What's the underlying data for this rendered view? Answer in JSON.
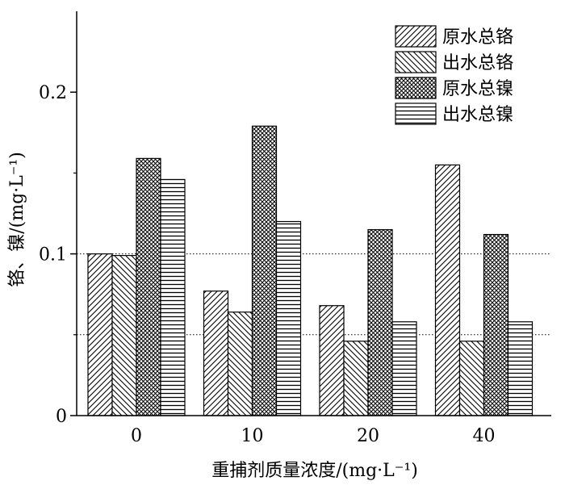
{
  "chart_data": {
    "type": "bar",
    "title": "",
    "xlabel": "重捕剂质量浓度/(mg·L⁻¹)",
    "ylabel": "铬、镍/(mg·L⁻¹)",
    "categories": [
      "0",
      "10",
      "20",
      "40"
    ],
    "ylim": [
      0,
      0.25
    ],
    "yticks": [
      "0",
      "0.1",
      "0.2"
    ],
    "ytick_values": [
      0,
      0.1,
      0.2
    ],
    "reference_lines": [
      0.1,
      0.05
    ],
    "legend_position": "top-right",
    "series": [
      {
        "name": "原水总铬",
        "values": [
          0.1,
          0.077,
          0.068,
          0.155
        ],
        "pattern": "diag-right"
      },
      {
        "name": "出水总铬",
        "values": [
          0.099,
          0.064,
          0.046,
          0.046
        ],
        "pattern": "diag-left"
      },
      {
        "name": "原水总镍",
        "values": [
          0.159,
          0.179,
          0.115,
          0.112
        ],
        "pattern": "cross"
      },
      {
        "name": "出水总镍",
        "values": [
          0.146,
          0.12,
          0.058,
          0.058
        ],
        "pattern": "horizontal"
      }
    ]
  }
}
